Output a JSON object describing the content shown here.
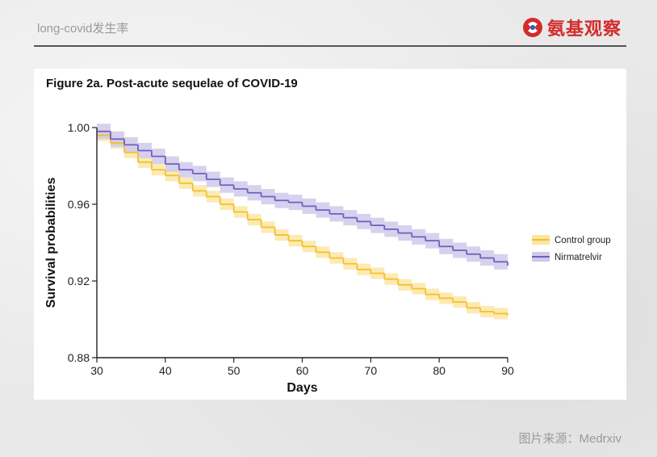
{
  "header": {
    "title": "long-covid发生率",
    "brand_name": "氨基观察"
  },
  "figure": {
    "title": "Figure 2a. Post-acute sequelae of COVID-19"
  },
  "source": {
    "label": "图片来源：",
    "name": "Medrxiv"
  },
  "colors": {
    "control": "#f4bf2a",
    "control_band": "#fbe6a6",
    "nirmatrelvir": "#6f5fbf",
    "nirmatrelvir_band": "#cfc9ea",
    "brand": "#d42b2b"
  },
  "chart_data": {
    "type": "line",
    "subtype": "step",
    "title": "Figure 2a. Post-acute sequelae of COVID-19",
    "xlabel": "Days",
    "ylabel": "Survival probabilities",
    "xlim": [
      30,
      90
    ],
    "ylim": [
      0.88,
      1.0
    ],
    "xticks": [
      30,
      40,
      50,
      60,
      70,
      80,
      90
    ],
    "yticks": [
      0.88,
      0.92,
      0.96,
      1.0
    ],
    "ytick_labels": [
      "0.88",
      "0.92",
      "0.96",
      "1.00"
    ],
    "legend_position": "right",
    "series": [
      {
        "name": "Control group",
        "x": [
          30,
          32,
          34,
          36,
          38,
          40,
          42,
          44,
          46,
          48,
          50,
          52,
          54,
          56,
          58,
          60,
          62,
          64,
          66,
          68,
          70,
          72,
          74,
          76,
          78,
          80,
          82,
          84,
          86,
          88,
          90
        ],
        "values": [
          0.996,
          0.992,
          0.987,
          0.982,
          0.978,
          0.975,
          0.971,
          0.967,
          0.964,
          0.96,
          0.956,
          0.952,
          0.948,
          0.944,
          0.941,
          0.938,
          0.935,
          0.932,
          0.929,
          0.926,
          0.924,
          0.921,
          0.918,
          0.916,
          0.913,
          0.911,
          0.909,
          0.906,
          0.904,
          0.903,
          0.902
        ],
        "ci_width": 0.003
      },
      {
        "name": "Nirmatrelvir",
        "x": [
          30,
          32,
          34,
          36,
          38,
          40,
          42,
          44,
          46,
          48,
          50,
          52,
          54,
          56,
          58,
          60,
          62,
          64,
          66,
          68,
          70,
          72,
          74,
          76,
          78,
          80,
          82,
          84,
          86,
          88,
          90
        ],
        "values": [
          0.998,
          0.994,
          0.991,
          0.988,
          0.985,
          0.981,
          0.978,
          0.976,
          0.973,
          0.97,
          0.968,
          0.966,
          0.964,
          0.962,
          0.961,
          0.959,
          0.957,
          0.955,
          0.953,
          0.951,
          0.949,
          0.947,
          0.945,
          0.943,
          0.941,
          0.938,
          0.936,
          0.934,
          0.932,
          0.93,
          0.928
        ],
        "ci_width": 0.004
      }
    ]
  }
}
